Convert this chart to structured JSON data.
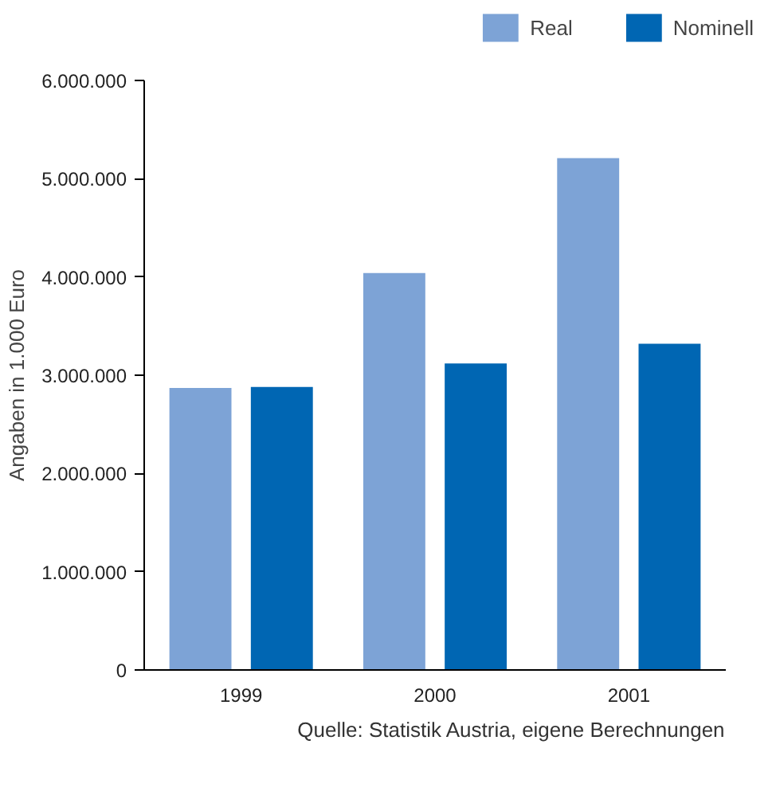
{
  "chart_data": {
    "type": "bar",
    "ylabel": "Angaben in 1.000 Euro",
    "categories": [
      "1999",
      "2000",
      "2001"
    ],
    "series": [
      {
        "name": "Real",
        "color": "#7da3d6",
        "values": [
          2870000,
          4040000,
          5210000
        ]
      },
      {
        "name": "Nominell",
        "color": "#0066b3",
        "values": [
          2880000,
          3120000,
          3320000
        ]
      }
    ],
    "ylim": [
      0,
      6000000
    ],
    "yticks": [
      {
        "value": 0,
        "label": "0"
      },
      {
        "value": 1000000,
        "label": "1.000.000"
      },
      {
        "value": 2000000,
        "label": "2.000.000"
      },
      {
        "value": 3000000,
        "label": "3.000.000"
      },
      {
        "value": 4000000,
        "label": "4.000.000"
      },
      {
        "value": 5000000,
        "label": "5.000.000"
      },
      {
        "value": 6000000,
        "label": "6.000.000"
      }
    ],
    "grid": false,
    "legend": "top right",
    "annotations": [
      "Quelle: Statistik Austria, eigene Berechnungen"
    ]
  }
}
